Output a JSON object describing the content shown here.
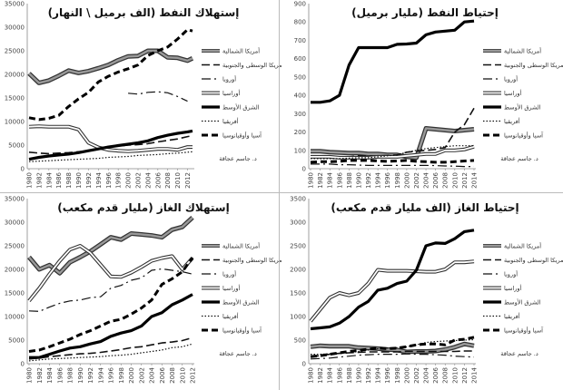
{
  "legend": [
    "أمريكا الشمالية",
    "أمريكا الوسطى والجنوبية",
    "أوروبا",
    "أوراسيا",
    "الشرق الأوسط",
    "أفريقيا",
    "آسيا وأوقيانوسيا"
  ],
  "author": "د. جاسم عجاقة",
  "chart_data": [
    {
      "type": "line",
      "title": "إستهلاك النفط (الف برميل \\ النهار)",
      "ylim": [
        0,
        35000
      ],
      "ystep": 5000,
      "x": [
        1980,
        1982,
        1984,
        1986,
        1988,
        1990,
        1992,
        1994,
        1996,
        1998,
        2000,
        2002,
        2004,
        2006,
        2008,
        2010,
        2012,
        2013
      ],
      "xticks": [
        1980,
        1982,
        1984,
        1986,
        1988,
        1990,
        1992,
        1994,
        1996,
        1998,
        2000,
        2002,
        2004,
        2006,
        2008,
        2010,
        2012
      ],
      "series": [
        {
          "name": "أمريكا الشمالية",
          "values": [
            20200,
            18200,
            18700,
            19700,
            20800,
            20300,
            20700,
            21300,
            22000,
            23000,
            23800,
            23900,
            25000,
            25000,
            23600,
            23500,
            22900,
            23400
          ]
        },
        {
          "name": "أمريكا الوسطى والجنوبية",
          "values": [
            3500,
            3300,
            3200,
            3300,
            3400,
            3600,
            3800,
            4200,
            4500,
            4800,
            5000,
            5100,
            5300,
            5700,
            6000,
            6300,
            6800,
            7000
          ]
        },
        {
          "name": "أوروبا",
          "values": [
            null,
            null,
            null,
            null,
            null,
            null,
            null,
            null,
            null,
            null,
            16000,
            15800,
            16200,
            16300,
            16100,
            15300,
            14300,
            null
          ]
        },
        {
          "name": "أوراسيا",
          "values": [
            8900,
            9000,
            8900,
            8900,
            8900,
            8300,
            5500,
            4500,
            4000,
            3800,
            3700,
            3800,
            4000,
            4200,
            4200,
            4000,
            4600,
            4600
          ]
        },
        {
          "name": "الشرق الأوسط",
          "values": [
            2000,
            2400,
            2700,
            2900,
            3100,
            3400,
            3800,
            4200,
            4600,
            4900,
            5200,
            5500,
            5900,
            6600,
            7100,
            7500,
            7800,
            8000
          ]
        },
        {
          "name": "أفريقيا",
          "values": [
            1500,
            1600,
            1700,
            1800,
            1900,
            2000,
            2100,
            2200,
            2400,
            2500,
            2600,
            2800,
            2900,
            3000,
            3200,
            3300,
            3500,
            3600
          ]
        },
        {
          "name": "آسيا وأوقيانوسيا",
          "values": [
            10800,
            10400,
            10700,
            11300,
            13200,
            14800,
            16200,
            18400,
            19600,
            20500,
            21200,
            22000,
            24000,
            25000,
            25800,
            27500,
            29500,
            29200
          ]
        }
      ]
    },
    {
      "type": "line",
      "title": "إحتياط النفط (مليار برميل)",
      "ylim": [
        0,
        900
      ],
      "ystep": 100,
      "x": [
        1980,
        1982,
        1984,
        1986,
        1988,
        1990,
        1992,
        1994,
        1996,
        1998,
        2000,
        2002,
        2004,
        2006,
        2008,
        2010,
        2012,
        2014
      ],
      "xticks": [
        1980,
        1982,
        1984,
        1986,
        1988,
        1990,
        1992,
        1994,
        1996,
        1998,
        2000,
        2002,
        2004,
        2006,
        2008,
        2010,
        2012,
        2014
      ],
      "series": [
        {
          "name": "أمريكا الشمالية",
          "values": [
            95,
            95,
            90,
            88,
            85,
            85,
            80,
            80,
            75,
            75,
            65,
            60,
            220,
            215,
            210,
            205,
            210,
            215
          ]
        },
        {
          "name": "أمريكا الوسطى والجنوبية",
          "values": [
            70,
            65,
            65,
            65,
            65,
            70,
            70,
            70,
            72,
            75,
            90,
            95,
            100,
            105,
            115,
            200,
            240,
            330
          ]
        },
        {
          "name": "أوروبا",
          "values": [
            25,
            25,
            25,
            22,
            22,
            20,
            18,
            18,
            18,
            18,
            18,
            18,
            18,
            17,
            15,
            14,
            12,
            12
          ]
        },
        {
          "name": "أوراسيا",
          "values": [
            65,
            65,
            65,
            60,
            60,
            60,
            60,
            65,
            65,
            65,
            70,
            75,
            80,
            80,
            100,
            100,
            105,
            120
          ]
        },
        {
          "name": "الشرق الأوسط",
          "values": [
            362,
            362,
            370,
            400,
            565,
            660,
            660,
            660,
            660,
            678,
            680,
            685,
            730,
            745,
            750,
            755,
            800,
            805
          ]
        },
        {
          "name": "أفريقيا",
          "values": [
            55,
            55,
            55,
            55,
            58,
            60,
            60,
            65,
            70,
            75,
            90,
            100,
            110,
            115,
            120,
            125,
            125,
            125
          ]
        },
        {
          "name": "آسيا وأوقيانوسيا",
          "values": [
            35,
            38,
            38,
            40,
            45,
            45,
            45,
            42,
            40,
            42,
            45,
            40,
            38,
            35,
            35,
            38,
            42,
            45
          ]
        }
      ]
    },
    {
      "type": "line",
      "title": "إستهلاك الغاز (مليار قدم مكعب)",
      "ylim": [
        0,
        35000
      ],
      "ystep": 5000,
      "x": [
        1980,
        1982,
        1984,
        1986,
        1988,
        1990,
        1992,
        1994,
        1996,
        1998,
        2000,
        2002,
        2004,
        2006,
        2008,
        2010,
        2012
      ],
      "xticks": [
        1980,
        1982,
        1984,
        1986,
        1988,
        1990,
        1992,
        1994,
        1996,
        1998,
        2000,
        2002,
        2004,
        2006,
        2008,
        2010,
        2012
      ],
      "series": [
        {
          "name": "أمريكا الشمالية",
          "values": [
            22600,
            20000,
            20900,
            19200,
            21500,
            22600,
            23800,
            25300,
            26800,
            26300,
            27600,
            27400,
            27200,
            26800,
            28400,
            29000,
            31000
          ]
        },
        {
          "name": "أمريكا الوسطى والجنوبية",
          "values": [
            1000,
            1200,
            1500,
            1700,
            1900,
            2100,
            2200,
            2400,
            2700,
            3000,
            3400,
            3600,
            4000,
            4400,
            4600,
            4900,
            5500
          ]
        },
        {
          "name": "أوروبا",
          "values": [
            11200,
            11100,
            12000,
            12800,
            13300,
            13500,
            14000,
            14200,
            16000,
            16600,
            17700,
            18200,
            19800,
            20100,
            19800,
            19500,
            19000
          ]
        },
        {
          "name": "أوراسيا",
          "values": [
            13300,
            16000,
            19000,
            21800,
            24200,
            25000,
            23500,
            21000,
            18500,
            18400,
            19300,
            20500,
            21800,
            22400,
            22800,
            20000,
            22400
          ]
        },
        {
          "name": "الشرق الأوسط",
          "values": [
            1300,
            1300,
            2000,
            2700,
            3300,
            3600,
            4200,
            4700,
            5800,
            6500,
            7000,
            8000,
            10000,
            10800,
            12500,
            13500,
            14700
          ]
        },
        {
          "name": "أفريقيا",
          "values": [
            600,
            800,
            1000,
            1100,
            1200,
            1300,
            1400,
            1500,
            1700,
            1800,
            2000,
            2300,
            2600,
            2900,
            3400,
            3600,
            4200
          ]
        },
        {
          "name": "آسيا وأوقيانوسيا",
          "values": [
            2600,
            2900,
            3600,
            4400,
            5200,
            6200,
            7000,
            8000,
            9000,
            9400,
            10500,
            11800,
            13500,
            16800,
            18000,
            19500,
            22500
          ]
        }
      ]
    },
    {
      "type": "line",
      "title": "إحتياط الغاز (الف مليار قدم مكعب)",
      "ylim": [
        0,
        3500
      ],
      "ystep": 500,
      "x": [
        1980,
        1982,
        1984,
        1986,
        1988,
        1990,
        1992,
        1994,
        1996,
        1998,
        2000,
        2002,
        2004,
        2006,
        2008,
        2010,
        2012,
        2014
      ],
      "xticks": [
        1980,
        1982,
        1984,
        1986,
        1988,
        1990,
        1992,
        1994,
        1996,
        1998,
        2000,
        2002,
        2004,
        2006,
        2008,
        2010,
        2012,
        2014
      ],
      "series": [
        {
          "name": "أمريكا الشمالية",
          "values": [
            360,
            380,
            370,
            370,
            370,
            340,
            330,
            320,
            300,
            290,
            250,
            260,
            260,
            270,
            300,
            350,
            420,
            380
          ]
        },
        {
          "name": "أمريكا الوسطى والجنوبية",
          "values": [
            150,
            170,
            200,
            220,
            230,
            240,
            250,
            250,
            250,
            250,
            260,
            260,
            260,
            260,
            260,
            260,
            270,
            270
          ]
        },
        {
          "name": "أوروبا",
          "values": [
            100,
            110,
            120,
            140,
            160,
            180,
            190,
            200,
            200,
            200,
            210,
            200,
            200,
            190,
            180,
            160,
            150,
            140
          ]
        },
        {
          "name": "أوراسيا",
          "values": [
            900,
            1150,
            1400,
            1500,
            1450,
            1500,
            1700,
            1990,
            1970,
            1970,
            1970,
            1960,
            1950,
            1950,
            2000,
            2150,
            2150,
            2170
          ]
        },
        {
          "name": "الشرق الأوسط",
          "values": [
            740,
            760,
            780,
            860,
            1000,
            1200,
            1320,
            1560,
            1600,
            1700,
            1750,
            1980,
            2500,
            2560,
            2550,
            2650,
            2800,
            2830
          ]
        },
        {
          "name": "أفريقيا",
          "values": [
            200,
            200,
            210,
            220,
            230,
            260,
            290,
            320,
            330,
            340,
            360,
            400,
            450,
            470,
            480,
            490,
            500,
            510
          ]
        },
        {
          "name": "آسيا وأوقيانوسيا",
          "values": [
            150,
            170,
            200,
            230,
            260,
            280,
            310,
            330,
            320,
            330,
            360,
            400,
            420,
            420,
            400,
            500,
            520,
            560
          ]
        }
      ]
    }
  ]
}
